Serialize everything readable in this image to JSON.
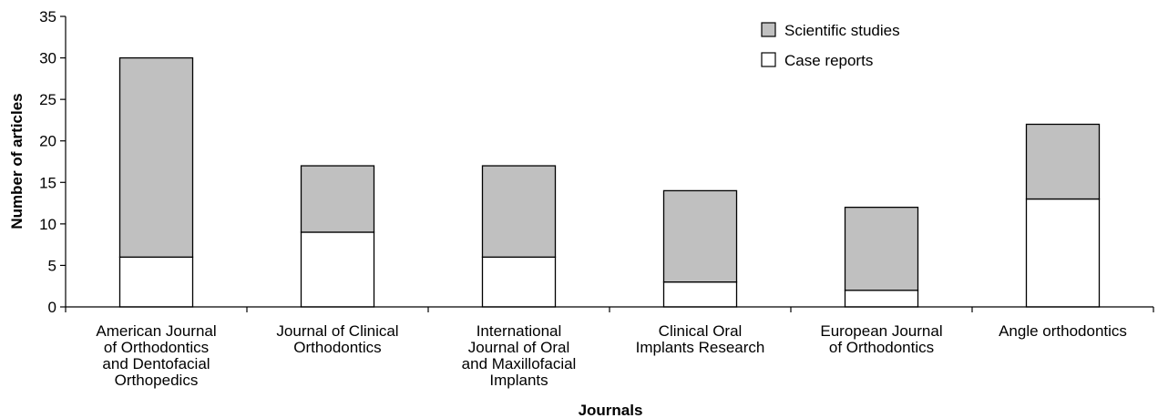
{
  "chart_data": {
    "type": "bar",
    "stacked": true,
    "xlabel": "Journals",
    "ylabel": "Number of articles",
    "ylim": [
      0,
      35
    ],
    "yticks": [
      0,
      5,
      10,
      15,
      20,
      25,
      30,
      35
    ],
    "grid": false,
    "legend_position": "top-right",
    "categories": [
      [
        "American Journal",
        "of Orthodontics",
        "and Dentofacial",
        "Orthopedics"
      ],
      [
        "Journal of Clinical",
        "Orthodontics"
      ],
      [
        "International",
        "Journal of Oral",
        "and Maxillofacial",
        "Implants"
      ],
      [
        "Clinical Oral",
        "Implants Research"
      ],
      [
        "European Journal",
        "of Orthodontics"
      ],
      [
        "Angle orthodontics"
      ]
    ],
    "series": [
      {
        "name": "Case reports",
        "values": [
          6,
          9,
          6,
          3,
          2,
          13
        ],
        "color": "#ffffff"
      },
      {
        "name": "Scientific studies",
        "values": [
          24,
          8,
          11,
          11,
          10,
          9
        ],
        "color": "#c0c0c0"
      }
    ],
    "legend_order": [
      1,
      0
    ]
  }
}
